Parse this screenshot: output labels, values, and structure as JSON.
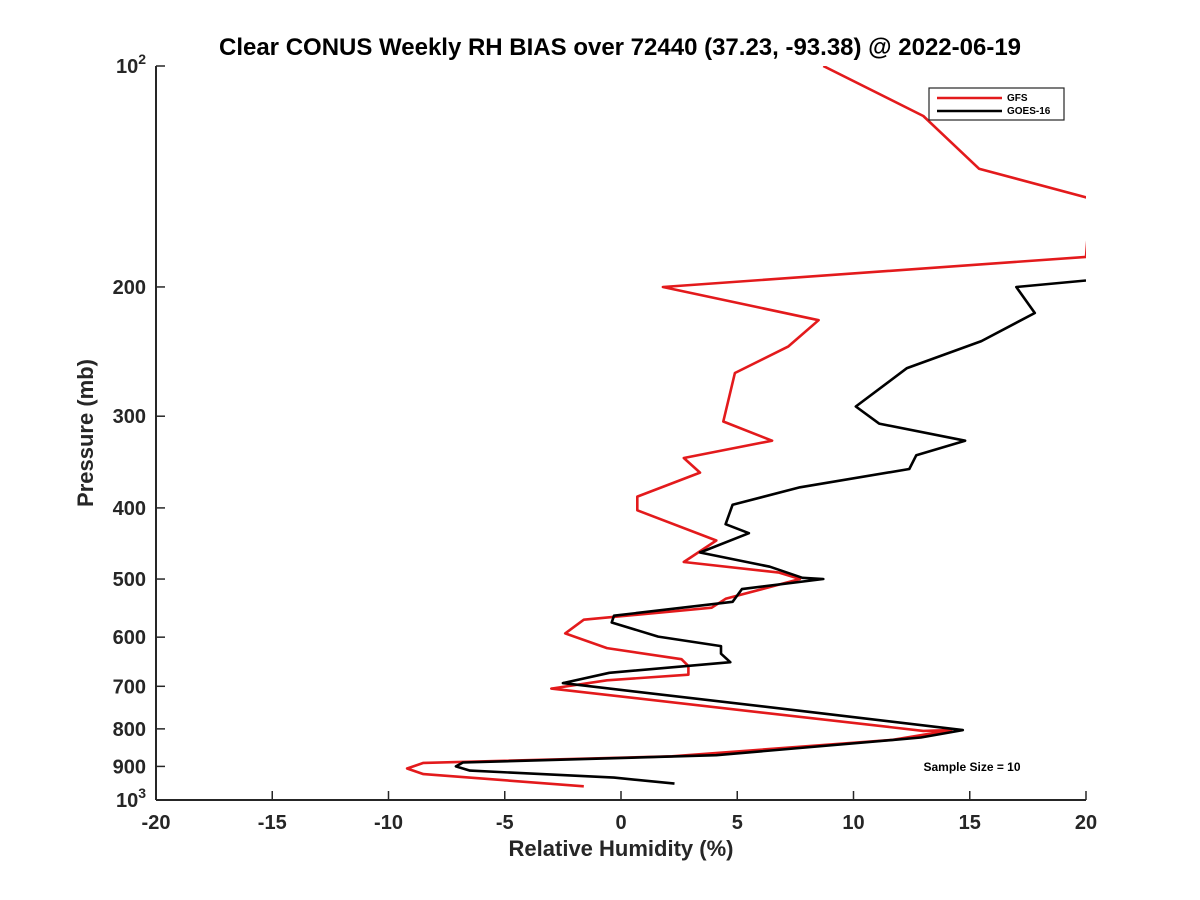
{
  "chart_data": {
    "type": "line",
    "title": "Clear CONUS Weekly RH BIAS over 72440 (37.23, -93.38) @ 2022-06-19",
    "xlabel": "Relative Humidity (%)",
    "ylabel": "Pressure (mb)",
    "xlim": [
      -20,
      20
    ],
    "ylim": [
      100,
      1000
    ],
    "y_scale": "log",
    "y_reversed": true,
    "grid": false,
    "legend_position": "top-right",
    "xticks": [
      -20,
      -15,
      -10,
      -5,
      0,
      5,
      10,
      15,
      20
    ],
    "xtick_labels": [
      "-20",
      "-15",
      "-10",
      "-5",
      "0",
      "5",
      "10",
      "15",
      "20"
    ],
    "yticks": [
      {
        "value": 100,
        "base": "10",
        "exp": "2"
      },
      {
        "value": 200,
        "base": "200",
        "exp": ""
      },
      {
        "value": 300,
        "base": "300",
        "exp": ""
      },
      {
        "value": 400,
        "base": "400",
        "exp": ""
      },
      {
        "value": 500,
        "base": "500",
        "exp": ""
      },
      {
        "value": 600,
        "base": "600",
        "exp": ""
      },
      {
        "value": 700,
        "base": "700",
        "exp": ""
      },
      {
        "value": 800,
        "base": "800",
        "exp": ""
      },
      {
        "value": 900,
        "base": "900",
        "exp": ""
      },
      {
        "value": 1000,
        "base": "10",
        "exp": "3"
      }
    ],
    "annotation": "Sample Size = 10",
    "series": [
      {
        "name": "GFS",
        "color": "#e31a1c",
        "points": [
          [
            8.7,
            100
          ],
          [
            13.0,
            117
          ],
          [
            15.4,
            138
          ],
          [
            20.0,
            151
          ],
          [
            20.2,
            151
          ],
          [
            20.0,
            182
          ],
          [
            1.8,
            200
          ],
          [
            8.5,
            222
          ],
          [
            7.2,
            241
          ],
          [
            4.9,
            262
          ],
          [
            4.4,
            305
          ],
          [
            6.5,
            324
          ],
          [
            2.7,
            342
          ],
          [
            3.4,
            358
          ],
          [
            0.7,
            386
          ],
          [
            0.7,
            403
          ],
          [
            4.1,
            443
          ],
          [
            2.7,
            474
          ],
          [
            6.8,
            490
          ],
          [
            7.7,
            500
          ],
          [
            4.5,
            532
          ],
          [
            3.9,
            547
          ],
          [
            -1.6,
            568
          ],
          [
            -2.4,
            593
          ],
          [
            -0.6,
            621
          ],
          [
            2.6,
            643
          ],
          [
            2.9,
            657
          ],
          [
            2.9,
            675
          ],
          [
            -0.6,
            687
          ],
          [
            -3.0,
            705
          ],
          [
            13.0,
            805
          ],
          [
            14.2,
            803
          ],
          [
            11.7,
            828
          ],
          [
            2.2,
            872
          ],
          [
            -8.5,
            890
          ],
          [
            -9.2,
            906
          ],
          [
            -8.5,
            922
          ],
          [
            -1.6,
            958
          ]
        ]
      },
      {
        "name": "GOES-16",
        "color": "#000000",
        "points": [
          [
            20.0,
            196
          ],
          [
            17.0,
            200
          ],
          [
            17.8,
            217
          ],
          [
            15.5,
            237
          ],
          [
            12.3,
            258
          ],
          [
            10.1,
            291
          ],
          [
            11.1,
            307
          ],
          [
            14.8,
            324
          ],
          [
            12.7,
            339
          ],
          [
            12.4,
            354
          ],
          [
            7.7,
            375
          ],
          [
            4.8,
            396
          ],
          [
            4.5,
            421
          ],
          [
            5.5,
            433
          ],
          [
            3.4,
            460
          ],
          [
            6.4,
            481
          ],
          [
            7.8,
            498
          ],
          [
            8.7,
            500
          ],
          [
            5.2,
            516
          ],
          [
            4.8,
            537
          ],
          [
            -0.3,
            561
          ],
          [
            -0.4,
            573
          ],
          [
            1.6,
            599
          ],
          [
            4.3,
            617
          ],
          [
            4.3,
            632
          ],
          [
            4.7,
            649
          ],
          [
            -0.5,
            671
          ],
          [
            -2.5,
            693
          ],
          [
            8.8,
            763
          ],
          [
            14.7,
            803
          ],
          [
            12.9,
            822
          ],
          [
            4.1,
            869
          ],
          [
            -6.8,
            889
          ],
          [
            -7.1,
            900
          ],
          [
            -6.5,
            912
          ],
          [
            -0.3,
            932
          ],
          [
            2.3,
            950
          ]
        ]
      }
    ]
  }
}
